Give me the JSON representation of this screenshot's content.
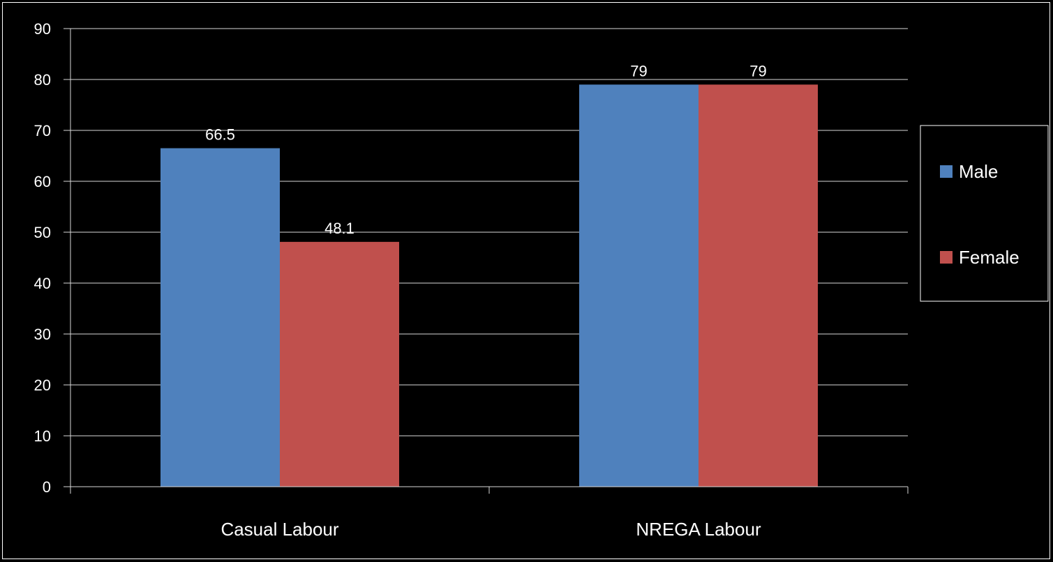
{
  "chart_data": {
    "type": "bar",
    "title": "",
    "xlabel": "",
    "ylabel": "",
    "categories": [
      "Casual Labour",
      "NREGA Labour"
    ],
    "series": [
      {
        "name": "Male",
        "values": [
          66.5,
          79
        ],
        "color": "#4F81BD"
      },
      {
        "name": "Female",
        "values": [
          48.1,
          79
        ],
        "color": "#C0504D"
      }
    ],
    "data_labels": [
      [
        "66.5",
        "79"
      ],
      [
        "48.1",
        "79"
      ]
    ],
    "ylim": [
      0,
      90
    ],
    "yticks": [
      0,
      10,
      20,
      30,
      40,
      50,
      60,
      70,
      80,
      90
    ],
    "grid": true,
    "legend_position": "right",
    "background": "#000000",
    "text_color": "#FFFFFF"
  }
}
